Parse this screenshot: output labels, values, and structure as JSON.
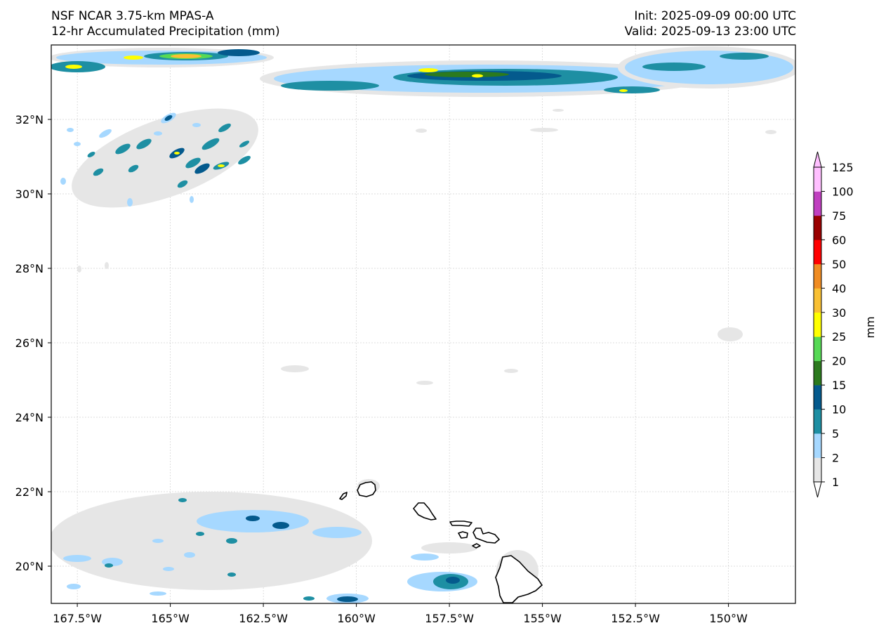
{
  "header": {
    "model": "NSF NCAR 3.75-km MPAS-A",
    "field": "12-hr Accumulated Precipitation (mm)",
    "init": "Init: 2025-09-09 00:00 UTC",
    "valid": "Valid: 2025-09-13 23:00 UTC"
  },
  "axes": {
    "lon_labels": [
      "167.5°W",
      "165°W",
      "162.5°W",
      "160°W",
      "157.5°W",
      "155°W",
      "152.5°W",
      "150°W"
    ],
    "lat_labels": [
      "32°N",
      "30°N",
      "28°N",
      "26°N",
      "24°N",
      "22°N",
      "20°N"
    ],
    "lon_range": [
      -168.2,
      -148.2
    ],
    "lat_range": [
      19.0,
      34.0
    ]
  },
  "colorbar": {
    "label": "mm",
    "ticks": [
      "1",
      "2",
      "5",
      "10",
      "15",
      "20",
      "25",
      "30",
      "40",
      "50",
      "60",
      "75",
      "100",
      "125"
    ],
    "colors": [
      "#e6e6e6",
      "#a6d8ff",
      "#1e8fa3",
      "#045a8d",
      "#2b7a1e",
      "#56d955",
      "#ffff00",
      "#f9c033",
      "#f08c22",
      "#ff0000",
      "#9a0000",
      "#c03fc0",
      "#ffbfff"
    ]
  },
  "precip_regions": [
    {
      "name": "northwest-band",
      "lon": -165.0,
      "lat": 33.6
    },
    {
      "name": "north-band",
      "lon": -156.5,
      "lat": 33.1
    },
    {
      "name": "northeast-band",
      "lon": -151.0,
      "lat": 33.4
    },
    {
      "name": "cellular-cluster",
      "lon": -164.0,
      "lat": 31.0
    },
    {
      "name": "southwest-showers",
      "lon": -163.0,
      "lat": 20.5
    },
    {
      "name": "maui-area-showers",
      "lon": -157.2,
      "lat": 19.5
    }
  ],
  "islands": [
    "Kauai",
    "Niihau",
    "Oahu",
    "Molokai",
    "Lanai",
    "Maui",
    "Kahoolawe",
    "Hawaii"
  ]
}
